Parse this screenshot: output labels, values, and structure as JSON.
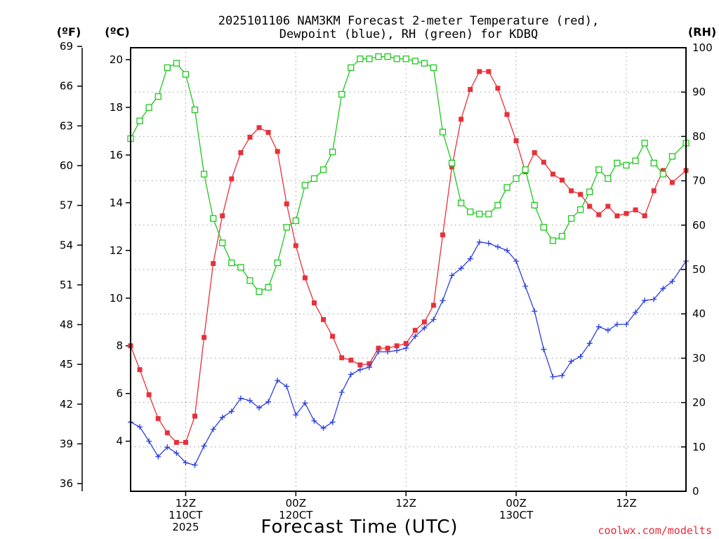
{
  "chart_data": {
    "type": "line",
    "title_line1": "2025101106 NAM3KM Forecast 2-meter Temperature (red),",
    "title_line2": "Dewpoint (blue), RH (green) for KDBQ",
    "xlabel": "Forecast Time (UTC)",
    "credit": "coolwx.com/modelts",
    "units": {
      "fahrenheit": "(ºF)",
      "celsius": "(ºC)",
      "rh": "(RH)"
    },
    "xlim_hours": [
      6,
      66.5
    ],
    "celsius_axis": {
      "lim": [
        1.9,
        20.5
      ],
      "ticks": [
        4,
        6,
        8,
        10,
        12,
        14,
        16,
        18,
        20
      ]
    },
    "fahrenheit_axis": {
      "lim": [
        35.42,
        68.9
      ],
      "ticks": [
        36,
        39,
        42,
        45,
        48,
        51,
        54,
        57,
        60,
        63,
        66,
        69
      ]
    },
    "rh_axis": {
      "lim": [
        0,
        100
      ],
      "ticks": [
        0,
        10,
        20,
        30,
        40,
        50,
        60,
        70,
        80,
        90,
        100
      ]
    },
    "x_ticks": [
      {
        "hour": 12,
        "lines": [
          "12Z",
          "110CT",
          "2025"
        ]
      },
      {
        "hour": 24,
        "lines": [
          "00Z",
          "120CT"
        ]
      },
      {
        "hour": 36,
        "lines": [
          "12Z"
        ]
      },
      {
        "hour": 48,
        "lines": [
          "00Z",
          "130CT"
        ]
      },
      {
        "hour": 60,
        "lines": [
          "12Z"
        ]
      }
    ],
    "series": [
      {
        "name": "Temperature",
        "units": "C",
        "color": "#e8303a",
        "marker": "filled-square",
        "x": [
          6,
          7,
          8,
          9,
          10,
          11,
          12,
          13,
          14,
          15,
          16,
          17,
          18,
          19,
          20,
          21,
          22,
          23,
          24,
          25,
          26,
          27,
          28,
          29,
          30,
          31,
          32,
          33,
          34,
          35,
          36,
          37,
          38,
          39,
          40,
          41,
          42,
          43,
          44,
          45,
          46,
          47,
          48,
          49,
          50,
          51,
          52,
          53,
          54,
          55,
          56,
          57,
          58,
          59,
          60,
          61,
          62,
          63,
          64,
          65,
          66.5
        ],
        "values": [
          8.0,
          7.0,
          5.95,
          4.95,
          4.35,
          3.95,
          3.95,
          5.05,
          8.35,
          11.45,
          13.45,
          15.0,
          16.1,
          16.75,
          17.15,
          16.95,
          16.15,
          13.95,
          12.2,
          10.85,
          9.8,
          9.1,
          8.4,
          7.5,
          7.4,
          7.2,
          7.25,
          7.9,
          7.9,
          8.0,
          8.1,
          8.65,
          9.0,
          9.7,
          12.65,
          15.5,
          17.5,
          18.75,
          19.5,
          19.5,
          18.8,
          17.7,
          16.6,
          15.3,
          16.1,
          15.7,
          15.2,
          14.95,
          14.5,
          14.35,
          13.85,
          13.5,
          13.85,
          13.45,
          13.55,
          13.7,
          13.45,
          14.5,
          15.35,
          14.85,
          15.35
        ]
      },
      {
        "name": "Dewpoint",
        "units": "C",
        "color": "#2b3fe0",
        "marker": "plus",
        "x": [
          6,
          7,
          8,
          9,
          10,
          11,
          12,
          13,
          14,
          15,
          16,
          17,
          18,
          19,
          20,
          21,
          22,
          23,
          24,
          25,
          26,
          27,
          28,
          29,
          30,
          31,
          32,
          33,
          34,
          35,
          36,
          37,
          38,
          39,
          40,
          41,
          42,
          43,
          44,
          45,
          46,
          47,
          48,
          49,
          50,
          51,
          52,
          53,
          54,
          55,
          56,
          57,
          58,
          59,
          60,
          61,
          62,
          63,
          64,
          65,
          66.5
        ],
        "values": [
          4.8,
          4.6,
          4.0,
          3.35,
          3.75,
          3.5,
          3.1,
          3.0,
          3.8,
          4.5,
          5.0,
          5.25,
          5.8,
          5.7,
          5.4,
          5.65,
          6.55,
          6.3,
          5.1,
          5.6,
          4.85,
          4.55,
          4.8,
          6.05,
          6.8,
          7.0,
          7.1,
          7.75,
          7.75,
          7.8,
          7.9,
          8.4,
          8.75,
          9.1,
          9.9,
          10.95,
          11.25,
          11.65,
          12.35,
          12.3,
          12.15,
          12.0,
          11.55,
          10.5,
          9.45,
          7.85,
          6.7,
          6.75,
          7.35,
          7.55,
          8.1,
          8.8,
          8.65,
          8.9,
          8.9,
          9.4,
          9.9,
          9.95,
          10.4,
          10.7,
          11.55
        ]
      },
      {
        "name": "RH",
        "units": "%",
        "color": "#1ec81e",
        "marker": "open-square",
        "x": [
          6,
          7,
          8,
          9,
          10,
          11,
          12,
          13,
          14,
          15,
          16,
          17,
          18,
          19,
          20,
          21,
          22,
          23,
          24,
          25,
          26,
          27,
          28,
          29,
          30,
          31,
          32,
          33,
          34,
          35,
          36,
          37,
          38,
          39,
          40,
          41,
          42,
          43,
          44,
          45,
          46,
          47,
          48,
          49,
          50,
          51,
          52,
          53,
          54,
          55,
          56,
          57,
          58,
          59,
          60,
          61,
          62,
          63,
          64,
          65,
          66.5
        ],
        "values": [
          79.5,
          83.5,
          86.5,
          89,
          95.5,
          96.5,
          94,
          86,
          71.5,
          61.5,
          56,
          51.5,
          50.5,
          47.5,
          45,
          46,
          51.5,
          59.5,
          61,
          69,
          70.5,
          72.5,
          76.5,
          89.5,
          95.5,
          97.5,
          97.5,
          98,
          98,
          97.5,
          97.5,
          97,
          96.5,
          95.5,
          81,
          74,
          65,
          63,
          62.5,
          62.5,
          64.5,
          68.5,
          70.5,
          72.5,
          64.5,
          59.5,
          56.5,
          57.5,
          61.5,
          63.5,
          67.5,
          72.5,
          70.5,
          74,
          73.5,
          74.5,
          78.5,
          74,
          71.5,
          75.5,
          78.5
        ]
      }
    ]
  }
}
